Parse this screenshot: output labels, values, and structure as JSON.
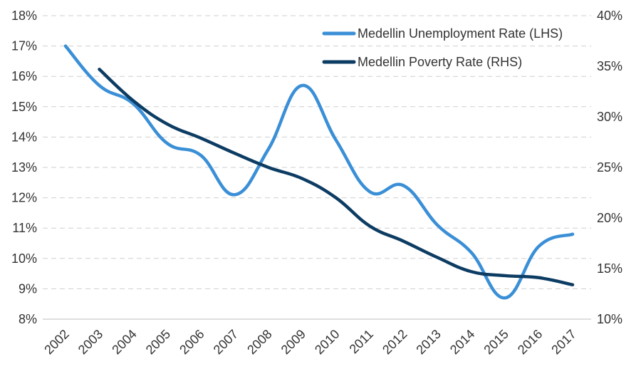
{
  "chart_data": {
    "type": "line",
    "title": "",
    "xlabel": "",
    "ylabel_left": "",
    "ylabel_right": "",
    "categories": [
      "2002",
      "2003",
      "2004",
      "2005",
      "2006",
      "2007",
      "2008",
      "2009",
      "2010",
      "2011",
      "2012",
      "2013",
      "2014",
      "2015",
      "2016",
      "2017"
    ],
    "left_axis": {
      "ticks": [
        "8%",
        "9%",
        "10%",
        "11%",
        "12%",
        "13%",
        "14%",
        "15%",
        "16%",
        "17%",
        "18%"
      ],
      "ylim": [
        8,
        18
      ]
    },
    "right_axis": {
      "ticks": [
        "10%",
        "15%",
        "20%",
        "25%",
        "30%",
        "35%",
        "40%"
      ],
      "ylim": [
        10,
        40
      ]
    },
    "grid": true,
    "legend_position": "top-right",
    "series": [
      {
        "name": "Medellin Unemployment Rate (LHS)",
        "axis": "left",
        "color": "#3a8fd6",
        "values": [
          17.0,
          15.7,
          15.1,
          13.8,
          13.4,
          12.1,
          13.6,
          15.7,
          13.9,
          12.2,
          12.4,
          11.1,
          10.2,
          8.7,
          10.4,
          10.8
        ]
      },
      {
        "name": "Medellin Poverty Rate (RHS)",
        "axis": "right",
        "color": "#0d3c63",
        "values": [
          null,
          34.7,
          31.6,
          29.3,
          27.9,
          26.4,
          25.0,
          23.9,
          22.0,
          19.2,
          17.7,
          16.1,
          14.7,
          14.3,
          14.1,
          13.4
        ]
      }
    ]
  }
}
